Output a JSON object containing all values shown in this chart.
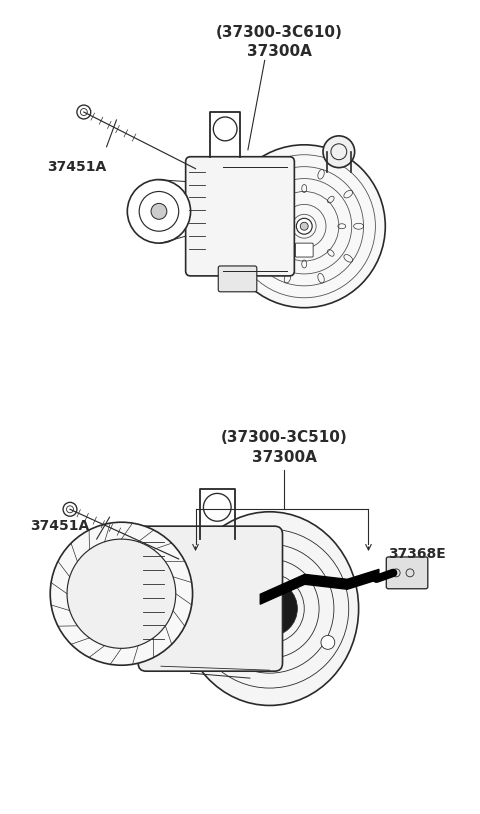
{
  "bg_color": "#ffffff",
  "line_color": "#2a2a2a",
  "text_color": "#2a2a2a",
  "fig_width": 4.8,
  "fig_height": 8.14,
  "diagram1": {
    "label_top": "(37300-3C610)",
    "label_sub": "37300A",
    "label_bolt": "37451A"
  },
  "diagram2": {
    "label_top": "(37300-3C510)",
    "label_sub": "37300A",
    "label_bolt": "37451A",
    "label_connector": "37368E"
  }
}
